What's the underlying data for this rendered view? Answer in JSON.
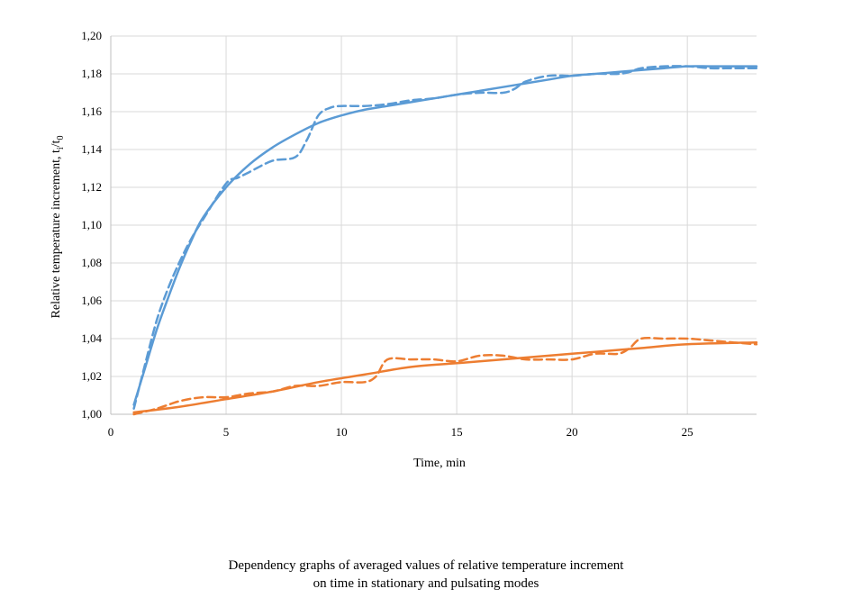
{
  "chart_data": {
    "type": "line",
    "title": "",
    "xlabel": "Time, min",
    "ylabel": "Relative temperature increment, t",
    "ylabel_sub1": "i",
    "ylabel_mid": "/t",
    "ylabel_sub2": "0",
    "xlim": [
      0,
      28
    ],
    "ylim": [
      1.0,
      1.2
    ],
    "x_ticks": [
      "0",
      "5",
      "10",
      "15",
      "20",
      "25"
    ],
    "x_tick_values": [
      0,
      5,
      10,
      15,
      20,
      25
    ],
    "y_ticks": [
      "1,00",
      "1,02",
      "1,04",
      "1,06",
      "1,08",
      "1,10",
      "1,12",
      "1,14",
      "1,16",
      "1,18",
      "1,20"
    ],
    "y_tick_values": [
      1.0,
      1.02,
      1.04,
      1.06,
      1.08,
      1.1,
      1.12,
      1.14,
      1.16,
      1.18,
      1.2
    ],
    "grid": true,
    "legend": "none",
    "series": [
      {
        "color": "#5b9bd5",
        "style": "solid",
        "x": [
          1,
          1.5,
          2,
          2.5,
          3,
          3.5,
          4,
          5,
          6,
          7,
          8,
          9,
          10,
          11,
          12,
          13,
          14,
          15,
          16,
          17,
          18,
          19,
          20,
          21,
          22,
          23,
          24,
          25,
          26,
          27,
          28
        ],
        "y": [
          1.005,
          1.025,
          1.045,
          1.062,
          1.078,
          1.092,
          1.104,
          1.12,
          1.132,
          1.141,
          1.148,
          1.154,
          1.158,
          1.161,
          1.163,
          1.165,
          1.167,
          1.169,
          1.171,
          1.173,
          1.175,
          1.177,
          1.179,
          1.18,
          1.181,
          1.182,
          1.183,
          1.184,
          1.184,
          1.184,
          1.184
        ]
      },
      {
        "color": "#5b9bd5",
        "style": "dashed",
        "x": [
          1,
          1.5,
          2,
          2.5,
          3,
          3.5,
          4,
          5,
          5.5,
          6,
          7,
          8,
          8.5,
          9,
          9.5,
          10,
          11,
          12,
          13,
          14,
          15,
          16,
          17,
          17.5,
          18,
          19,
          20,
          21,
          22,
          22.5,
          23,
          24,
          25,
          26,
          27,
          28
        ],
        "y": [
          1.003,
          1.027,
          1.05,
          1.067,
          1.081,
          1.093,
          1.103,
          1.122,
          1.125,
          1.128,
          1.134,
          1.136,
          1.145,
          1.158,
          1.162,
          1.163,
          1.163,
          1.164,
          1.166,
          1.167,
          1.169,
          1.17,
          1.17,
          1.172,
          1.176,
          1.179,
          1.179,
          1.18,
          1.18,
          1.181,
          1.183,
          1.184,
          1.184,
          1.183,
          1.183,
          1.183
        ]
      },
      {
        "color": "#ed7d31",
        "style": "solid",
        "x": [
          1,
          3,
          5,
          7,
          9,
          11,
          13,
          15,
          17,
          19,
          21,
          23,
          25,
          28
        ],
        "y": [
          1.001,
          1.004,
          1.008,
          1.012,
          1.017,
          1.021,
          1.025,
          1.027,
          1.029,
          1.031,
          1.033,
          1.035,
          1.037,
          1.038
        ]
      },
      {
        "color": "#ed7d31",
        "style": "dashed",
        "x": [
          1,
          2,
          3,
          4,
          5,
          6,
          7,
          8,
          9,
          10,
          11,
          11.5,
          12,
          13,
          14,
          15,
          16,
          17,
          18,
          19,
          20,
          21,
          22,
          22.5,
          23,
          24,
          25,
          26,
          27,
          28
        ],
        "y": [
          1.0,
          1.003,
          1.007,
          1.009,
          1.009,
          1.011,
          1.012,
          1.015,
          1.015,
          1.017,
          1.017,
          1.02,
          1.029,
          1.029,
          1.029,
          1.028,
          1.031,
          1.031,
          1.029,
          1.029,
          1.029,
          1.032,
          1.032,
          1.035,
          1.04,
          1.04,
          1.04,
          1.039,
          1.038,
          1.037
        ]
      }
    ]
  },
  "caption": {
    "line1": "Dependency graphs of averaged values of relative temperature increment",
    "line2": "on time in stationary and pulsating modes"
  }
}
